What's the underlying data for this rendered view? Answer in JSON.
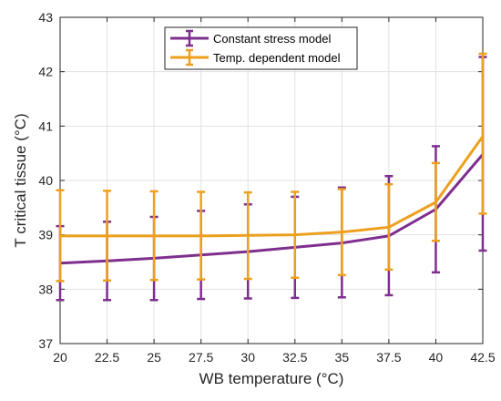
{
  "chart_data": {
    "type": "line",
    "xlabel": "WB temperature  (°C)",
    "ylabel": "T critical tissue (°C)",
    "xlim": [
      20,
      42.5
    ],
    "ylim": [
      37,
      43
    ],
    "x_ticks": [
      "20",
      "22.5",
      "25",
      "27.5",
      "30",
      "32.5",
      "35",
      "37.5",
      "40",
      "42.5"
    ],
    "y_ticks": [
      "37",
      "38",
      "39",
      "40",
      "41",
      "42",
      "43"
    ],
    "grid": true,
    "legend_position": "top-center",
    "x": [
      20,
      22.5,
      25,
      27.5,
      30,
      32.5,
      35,
      37.5,
      40,
      42.5
    ],
    "series": [
      {
        "name": "Constant stress model",
        "color": "#7E2F8E",
        "values": [
          38.48,
          38.52,
          38.57,
          38.63,
          38.69,
          38.77,
          38.85,
          38.98,
          39.47,
          40.48
        ],
        "lower": [
          37.8,
          37.8,
          37.8,
          37.82,
          37.83,
          37.84,
          37.85,
          37.89,
          38.31,
          38.71
        ],
        "upper": [
          39.16,
          39.24,
          39.33,
          39.44,
          39.56,
          39.7,
          39.87,
          40.08,
          40.63,
          42.27
        ]
      },
      {
        "name": "Temp. dependent model",
        "color": "#EDA01E",
        "values": [
          38.98,
          38.98,
          38.98,
          38.98,
          38.99,
          39.0,
          39.05,
          39.14,
          39.6,
          40.81
        ],
        "lower": [
          38.15,
          38.16,
          38.17,
          38.18,
          38.19,
          38.21,
          38.26,
          38.36,
          38.89,
          39.39
        ],
        "upper": [
          39.82,
          39.81,
          39.8,
          39.79,
          39.78,
          39.79,
          39.84,
          39.93,
          40.32,
          42.33
        ]
      }
    ]
  }
}
